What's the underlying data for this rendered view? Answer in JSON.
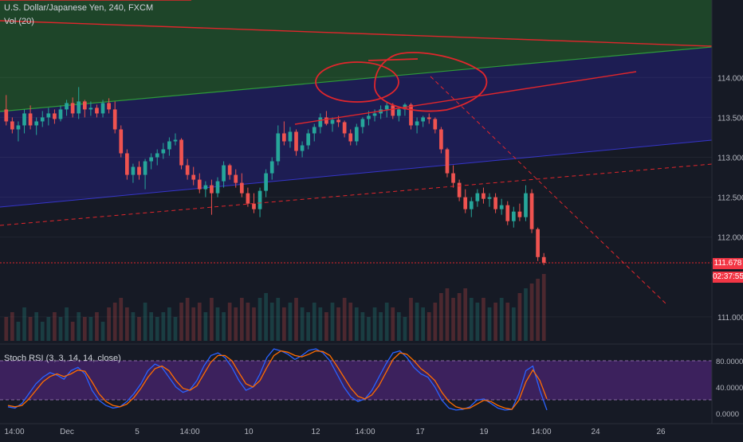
{
  "header": {
    "symbol_title": "U.S. Dollar/Japanese Yen, 240, FXCM",
    "volume_label": "Vol (20)",
    "stoch_label": "Stoch RSI (3, 3, 14, 14, close)"
  },
  "price_axis": {
    "ticks": [
      "114.000",
      "113.500",
      "113.000",
      "112.500",
      "112.000",
      "111.000"
    ],
    "last_price": "111.678",
    "countdown": "02:37:55"
  },
  "stoch_axis": {
    "ticks": [
      "80.0000",
      "40.0000",
      "0.0000"
    ]
  },
  "time_axis": {
    "ticks": [
      "14:00",
      "Dec",
      "5",
      "14:00",
      "10",
      "12",
      "14:00",
      "17",
      "19",
      "14:00",
      "24",
      "26"
    ]
  },
  "colors": {
    "background": "#161a25",
    "bullish": "#26a69a",
    "bearish": "#ef5350",
    "drawing_red": "#e0262c",
    "channel_green": "#1f6b2c",
    "channel_blue": "#2a2a8a",
    "stoch_k": "#2962ff",
    "stoch_d": "#ff6d00",
    "stoch_band": "#5b2a86"
  },
  "chart_data": [
    {
      "type": "candlestick",
      "title": "U.S. Dollar/Japanese Yen, 240, FXCM",
      "ylim": [
        110.9,
        114.6
      ],
      "y_ticks": [
        114.0,
        113.5,
        113.0,
        112.5,
        112.0,
        111.0
      ],
      "last_price": 111.678,
      "candles": [
        [
          113.6,
          113.78,
          113.4,
          113.45
        ],
        [
          113.45,
          113.5,
          113.3,
          113.35
        ],
        [
          113.35,
          113.45,
          113.2,
          113.4
        ],
        [
          113.4,
          113.6,
          113.3,
          113.55
        ],
        [
          113.55,
          113.65,
          113.35,
          113.4
        ],
        [
          113.4,
          113.5,
          113.28,
          113.45
        ],
        [
          113.45,
          113.58,
          113.38,
          113.5
        ],
        [
          113.5,
          113.62,
          113.4,
          113.55
        ],
        [
          113.55,
          113.6,
          113.42,
          113.48
        ],
        [
          113.48,
          113.65,
          113.45,
          113.6
        ],
        [
          113.6,
          113.72,
          113.52,
          113.68
        ],
        [
          113.68,
          113.75,
          113.5,
          113.55
        ],
        [
          113.55,
          113.88,
          113.48,
          113.7
        ],
        [
          113.7,
          113.72,
          113.5,
          113.6
        ],
        [
          113.6,
          113.7,
          113.52,
          113.62
        ],
        [
          113.62,
          113.66,
          113.5,
          113.55
        ],
        [
          113.55,
          113.72,
          113.5,
          113.68
        ],
        [
          113.68,
          113.74,
          113.55,
          113.6
        ],
        [
          113.6,
          113.7,
          113.3,
          113.35
        ],
        [
          113.35,
          113.4,
          113.0,
          113.05
        ],
        [
          113.05,
          113.1,
          112.72,
          112.78
        ],
        [
          112.78,
          112.92,
          112.68,
          112.88
        ],
        [
          112.88,
          112.95,
          112.72,
          112.78
        ],
        [
          112.78,
          112.98,
          112.6,
          112.95
        ],
        [
          112.95,
          113.05,
          112.85,
          113.0
        ],
        [
          113.0,
          113.1,
          112.9,
          113.05
        ],
        [
          113.05,
          113.18,
          112.98,
          113.1
        ],
        [
          113.1,
          113.25,
          113.02,
          113.2
        ],
        [
          113.2,
          113.3,
          113.15,
          113.22
        ],
        [
          113.22,
          113.24,
          112.85,
          112.9
        ],
        [
          112.9,
          112.98,
          112.72,
          112.78
        ],
        [
          112.78,
          112.88,
          112.65,
          112.72
        ],
        [
          112.72,
          112.8,
          112.55,
          112.6
        ],
        [
          112.6,
          112.7,
          112.5,
          112.65
        ],
        [
          112.65,
          112.72,
          112.28,
          112.55
        ],
        [
          112.55,
          112.75,
          112.5,
          112.7
        ],
        [
          112.7,
          112.95,
          112.62,
          112.9
        ],
        [
          112.9,
          112.92,
          112.72,
          112.78
        ],
        [
          112.78,
          112.85,
          112.62,
          112.68
        ],
        [
          112.68,
          112.8,
          112.5,
          112.55
        ],
        [
          112.55,
          112.62,
          112.38,
          112.42
        ],
        [
          112.42,
          112.55,
          112.3,
          112.35
        ],
        [
          112.35,
          112.62,
          112.25,
          112.58
        ],
        [
          112.58,
          112.85,
          112.5,
          112.8
        ],
        [
          112.8,
          113.0,
          112.72,
          112.95
        ],
        [
          112.95,
          113.4,
          112.9,
          113.3
        ],
        [
          113.3,
          113.45,
          113.15,
          113.2
        ],
        [
          113.2,
          113.38,
          113.12,
          113.32
        ],
        [
          113.32,
          113.35,
          113.02,
          113.08
        ],
        [
          113.08,
          113.2,
          113.0,
          113.15
        ],
        [
          113.15,
          113.35,
          113.1,
          113.3
        ],
        [
          113.3,
          113.42,
          113.2,
          113.38
        ],
        [
          113.38,
          113.55,
          113.3,
          113.5
        ],
        [
          113.5,
          113.58,
          113.4,
          113.42
        ],
        [
          113.42,
          113.5,
          113.32,
          113.47
        ],
        [
          113.47,
          113.52,
          113.38,
          113.44
        ],
        [
          113.44,
          113.46,
          113.25,
          113.3
        ],
        [
          113.3,
          113.35,
          113.15,
          113.2
        ],
        [
          113.2,
          113.42,
          113.15,
          113.38
        ],
        [
          113.38,
          113.5,
          113.3,
          113.48
        ],
        [
          113.48,
          113.58,
          113.4,
          113.52
        ],
        [
          113.52,
          113.6,
          113.45,
          113.55
        ],
        [
          113.55,
          113.65,
          113.48,
          113.6
        ],
        [
          113.6,
          113.7,
          113.5,
          113.65
        ],
        [
          113.65,
          113.68,
          113.48,
          113.52
        ],
        [
          113.52,
          113.62,
          113.45,
          113.6
        ],
        [
          113.6,
          113.68,
          113.52,
          113.66
        ],
        [
          113.66,
          113.68,
          113.35,
          113.4
        ],
        [
          113.4,
          113.5,
          113.3,
          113.45
        ],
        [
          113.45,
          113.52,
          113.38,
          113.5
        ],
        [
          113.5,
          113.55,
          113.42,
          113.48
        ],
        [
          113.48,
          113.5,
          113.3,
          113.35
        ],
        [
          113.35,
          113.38,
          113.05,
          113.1
        ],
        [
          113.1,
          113.12,
          112.75,
          112.8
        ],
        [
          112.8,
          112.9,
          112.62,
          112.68
        ],
        [
          112.68,
          112.72,
          112.45,
          112.5
        ],
        [
          112.5,
          112.6,
          112.3,
          112.35
        ],
        [
          112.35,
          112.5,
          112.25,
          112.45
        ],
        [
          112.45,
          112.6,
          112.38,
          112.55
        ],
        [
          112.55,
          112.62,
          112.42,
          112.48
        ],
        [
          112.48,
          112.55,
          112.38,
          112.5
        ],
        [
          112.5,
          112.55,
          112.3,
          112.35
        ],
        [
          112.35,
          112.48,
          112.28,
          112.4
        ],
        [
          112.4,
          112.45,
          112.15,
          112.2
        ],
        [
          112.2,
          112.38,
          112.12,
          112.32
        ],
        [
          112.32,
          112.42,
          112.2,
          112.25
        ],
        [
          112.25,
          112.65,
          112.2,
          112.55
        ],
        [
          112.55,
          112.6,
          112.05,
          112.1
        ],
        [
          112.1,
          112.12,
          111.7,
          111.75
        ],
        [
          111.75,
          111.8,
          111.65,
          111.678
        ]
      ]
    },
    {
      "type": "bar",
      "title": "Vol (20)",
      "values": [
        5,
        6,
        4,
        7,
        5,
        6,
        4,
        5,
        6,
        5,
        7,
        4,
        6,
        5,
        5,
        6,
        4,
        7,
        8,
        9,
        7,
        6,
        5,
        8,
        6,
        5,
        6,
        7,
        5,
        8,
        9,
        7,
        8,
        6,
        9,
        7,
        6,
        8,
        7,
        9,
        8,
        7,
        9,
        10,
        8,
        9,
        7,
        8,
        9,
        7,
        6,
        8,
        7,
        6,
        8,
        7,
        9,
        8,
        7,
        6,
        5,
        7,
        6,
        8,
        7,
        6,
        5,
        9,
        8,
        7,
        6,
        8,
        10,
        11,
        9,
        10,
        11,
        9,
        8,
        9,
        7,
        8,
        9,
        8,
        7,
        10,
        11,
        12,
        13,
        14
      ]
    },
    {
      "type": "line",
      "title": "Stoch RSI (3, 3, 14, 14, close)",
      "ylim": [
        0,
        100
      ],
      "y_ticks": [
        80,
        40,
        0
      ],
      "band": [
        20,
        80
      ],
      "series": [
        {
          "values": [
            10,
            8,
            15,
            30,
            45,
            55,
            62,
            58,
            52,
            65,
            70,
            60,
            35,
            20,
            12,
            8,
            10,
            18,
            30,
            45,
            65,
            75,
            70,
            55,
            40,
            32,
            36,
            50,
            72,
            88,
            92,
            85,
            70,
            50,
            35,
            40,
            60,
            85,
            98,
            95,
            90,
            82,
            88,
            96,
            98,
            92,
            80,
            60,
            40,
            25,
            18,
            22,
            35,
            55,
            75,
            92,
            95,
            85,
            70,
            60,
            55,
            40,
            20,
            8,
            5,
            6,
            10,
            20,
            22,
            15,
            8,
            5,
            6,
            30,
            65,
            72,
            35,
            5
          ]
        },
        {
          "values": [
            12,
            10,
            12,
            22,
            35,
            48,
            56,
            60,
            56,
            60,
            66,
            64,
            48,
            30,
            18,
            12,
            10,
            14,
            24,
            38,
            55,
            68,
            72,
            65,
            50,
            38,
            35,
            42,
            60,
            78,
            88,
            88,
            80,
            62,
            45,
            40,
            50,
            70,
            88,
            95,
            93,
            88,
            86,
            90,
            95,
            94,
            88,
            72,
            55,
            38,
            26,
            22,
            28,
            42,
            62,
            82,
            92,
            90,
            80,
            68,
            60,
            50,
            32,
            18,
            10,
            7,
            8,
            14,
            20,
            18,
            12,
            8,
            6,
            20,
            48,
            66,
            50,
            22
          ]
        }
      ]
    }
  ]
}
